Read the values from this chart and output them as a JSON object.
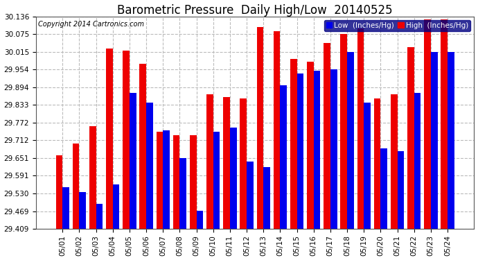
{
  "title": "Barometric Pressure  Daily High/Low  20140525",
  "copyright": "Copyright 2014 Cartronics.com",
  "legend_low": "Low  (Inches/Hg)",
  "legend_high": "High  (Inches/Hg)",
  "dates": [
    "05/01",
    "05/02",
    "05/03",
    "05/04",
    "05/05",
    "05/06",
    "05/07",
    "05/08",
    "05/09",
    "05/10",
    "05/11",
    "05/12",
    "05/13",
    "05/14",
    "05/15",
    "05/16",
    "05/17",
    "05/18",
    "05/19",
    "05/20",
    "05/21",
    "05/22",
    "05/23",
    "05/24"
  ],
  "low": [
    29.55,
    29.535,
    29.495,
    29.56,
    29.875,
    29.84,
    29.745,
    29.65,
    29.47,
    29.74,
    29.755,
    29.64,
    29.62,
    29.9,
    29.94,
    29.95,
    29.955,
    30.015,
    29.84,
    29.685,
    29.675,
    29.875,
    30.015,
    30.015
  ],
  "high": [
    29.66,
    29.7,
    29.76,
    30.025,
    30.02,
    29.975,
    29.74,
    29.73,
    29.73,
    29.87,
    29.86,
    29.855,
    30.1,
    30.085,
    29.99,
    29.98,
    30.045,
    30.075,
    30.095,
    29.855,
    29.87,
    30.03,
    30.125,
    30.125
  ],
  "ylim_min": 29.409,
  "ylim_max": 30.136,
  "yticks": [
    29.409,
    29.469,
    29.53,
    29.591,
    29.651,
    29.712,
    29.772,
    29.833,
    29.894,
    29.954,
    30.015,
    30.075,
    30.136
  ],
  "bar_color_low": "#0000ee",
  "bar_color_high": "#ee0000",
  "background_color": "#ffffff",
  "grid_color": "#bbbbbb",
  "title_fontsize": 12,
  "tick_fontsize": 7.5,
  "copyright_fontsize": 7
}
